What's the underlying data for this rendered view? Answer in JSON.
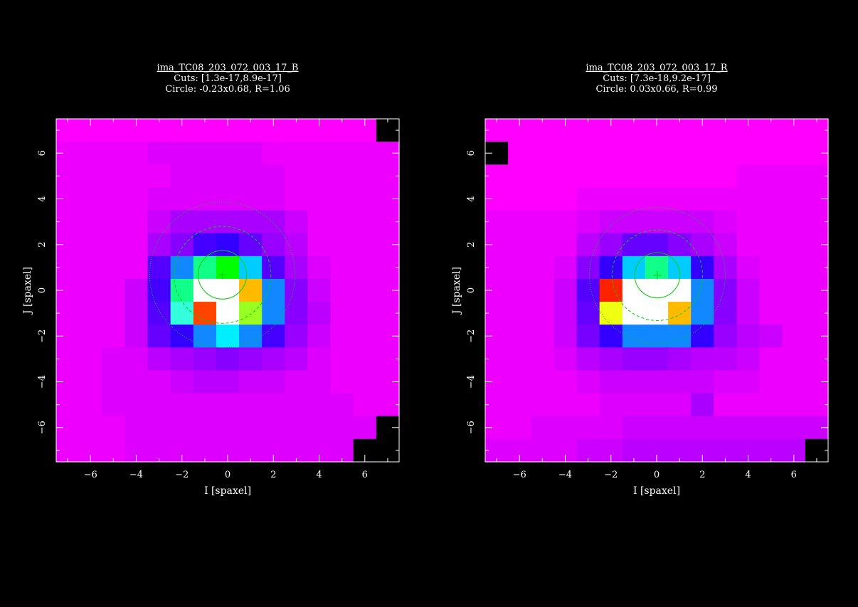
{
  "chart_data": [
    {
      "type": "heatmap",
      "title": "ima_TC08_203_072_003_17_B",
      "cuts": "Cuts: [1.3e-17,8.9e-17]",
      "circle_label": "Circle: -0.23x0.68, R=1.06",
      "xlabel": "I [spaxel]",
      "ylabel": "J [spaxel]",
      "xlim": [
        -7.5,
        7.5
      ],
      "ylim": [
        -7.5,
        7.5
      ],
      "xticks": [
        "-6",
        "-4",
        "-2",
        "0",
        "2",
        "4",
        "6"
      ],
      "yticks": [
        "-6",
        "-4",
        "-2",
        "0",
        "2",
        "4",
        "6"
      ],
      "circle": {
        "cx": -0.23,
        "cy": 0.68,
        "r": 1.06
      },
      "grid_rows_top_to_bottom": [
        [
          "#f0f",
          "#f0f",
          "#f0f",
          "#f0f",
          "#f0f",
          "#f0f",
          "#f0f",
          "#f0f",
          "#f0f",
          "#f0f",
          "#f0f",
          "#f0f",
          "#f0f",
          "#f0f",
          "#000"
        ],
        [
          "#e0f",
          "#e0f",
          "#e0f",
          "#e0f",
          "#d0f",
          "#d0f",
          "#d0f",
          "#d0f",
          "#d0f",
          "#e0f",
          "#e0f",
          "#e0f",
          "#e0f",
          "#e0f",
          "#e0f"
        ],
        [
          "#e0f",
          "#e0f",
          "#e0f",
          "#e0f",
          "#e0f",
          "#d0f",
          "#d0f",
          "#d0f",
          "#d0f",
          "#d0f",
          "#e0f",
          "#e0f",
          "#e0f",
          "#e0f",
          "#e0f"
        ],
        [
          "#e0f",
          "#e0f",
          "#e0f",
          "#e0f",
          "#d0f",
          "#d0f",
          "#d0f",
          "#d0f",
          "#d0f",
          "#d0f",
          "#e0f",
          "#e0f",
          "#e0f",
          "#e0f",
          "#e0f"
        ],
        [
          "#e0f",
          "#e0f",
          "#e0f",
          "#e0f",
          "#c0f",
          "#a0f",
          "#a0f",
          "#a0f",
          "#a0f",
          "#a0f",
          "#c0f",
          "#e0f",
          "#e0f",
          "#e0f",
          "#e0f"
        ],
        [
          "#e0f",
          "#e0f",
          "#e0f",
          "#e0f",
          "#a0f",
          "#80f",
          "#40f",
          "#30f",
          "#60f",
          "#90f",
          "#b0f",
          "#e0f",
          "#e0f",
          "#e0f",
          "#e0f"
        ],
        [
          "#e0f",
          "#e0f",
          "#e0f",
          "#e0f",
          "#50f",
          "#18f",
          "#1f8",
          "#0f0",
          "#0cf",
          "#50f",
          "#a0f",
          "#d0f",
          "#e0f",
          "#e0f",
          "#e0f"
        ],
        [
          "#e0f",
          "#e0f",
          "#e0f",
          "#c0f",
          "#40f",
          "#1f8",
          "#fff",
          "#fff",
          "#fb0",
          "#18f",
          "#80f",
          "#c0f",
          "#e0f",
          "#e0f",
          "#e0f"
        ],
        [
          "#e0f",
          "#e0f",
          "#e0f",
          "#c0f",
          "#50f",
          "#3fd",
          "#f40",
          "#fff",
          "#9f2",
          "#18f",
          "#80f",
          "#b0f",
          "#e0f",
          "#e0f",
          "#e0f"
        ],
        [
          "#e0f",
          "#e0f",
          "#e0f",
          "#c0f",
          "#60f",
          "#30f",
          "#18f",
          "#0ef",
          "#18f",
          "#40f",
          "#90f",
          "#c0f",
          "#e0f",
          "#e0f",
          "#e0f"
        ],
        [
          "#e0f",
          "#e0f",
          "#d0f",
          "#d0f",
          "#b0f",
          "#a0f",
          "#90f",
          "#80f",
          "#90f",
          "#a0f",
          "#b0f",
          "#d0f",
          "#e0f",
          "#e0f",
          "#e0f"
        ],
        [
          "#e0f",
          "#e0f",
          "#d0f",
          "#d0f",
          "#d0f",
          "#c0f",
          "#b0f",
          "#b0f",
          "#c0f",
          "#c0f",
          "#d0f",
          "#d0f",
          "#e0f",
          "#e0f",
          "#e0f"
        ],
        [
          "#e0f",
          "#e0f",
          "#d0f",
          "#d0f",
          "#d0f",
          "#d0f",
          "#d0f",
          "#d0f",
          "#d0f",
          "#d0f",
          "#d0f",
          "#d0f",
          "#d0f",
          "#e0f",
          "#e0f"
        ],
        [
          "#e0f",
          "#e0f",
          "#e0f",
          "#d0f",
          "#d0f",
          "#d0f",
          "#d0f",
          "#d0f",
          "#d0f",
          "#d0f",
          "#d0f",
          "#d0f",
          "#d0f",
          "#d0f",
          "#c0f"
        ],
        [
          "#e0f",
          "#e0f",
          "#e0f",
          "#d0f",
          "#d0f",
          "#d0f",
          "#d0f",
          "#d0f",
          "#d0f",
          "#d0f",
          "#d0f",
          "#d0f",
          "#d0f",
          "#d0f",
          "#000"
        ]
      ],
      "extra_black_cells": [
        [
          13,
          14
        ],
        [
          14,
          13
        ],
        [
          14,
          14
        ]
      ]
    },
    {
      "type": "heatmap",
      "title": "ima_TC08_203_072_003_17_R",
      "cuts": "Cuts: [7.3e-18,9.2e-17]",
      "circle_label": "Circle: 0.03x0.66, R=0.99",
      "xlabel": "I [spaxel]",
      "ylabel": "J [spaxel]",
      "xlim": [
        -7.5,
        7.5
      ],
      "ylim": [
        -7.5,
        7.5
      ],
      "xticks": [
        "-6",
        "-4",
        "-2",
        "0",
        "2",
        "4",
        "6"
      ],
      "yticks": [
        "-6",
        "-4",
        "-2",
        "0",
        "2",
        "4",
        "6"
      ],
      "circle": {
        "cx": 0.03,
        "cy": 0.66,
        "r": 0.99
      },
      "grid_rows_top_to_bottom": [
        [
          "#f0f",
          "#f0f",
          "#f0f",
          "#f0f",
          "#f0f",
          "#f0f",
          "#f0f",
          "#f0f",
          "#f0f",
          "#f0f",
          "#f0f",
          "#f0f",
          "#f0f",
          "#f0f",
          "#f0f"
        ],
        [
          "#000",
          "#f0f",
          "#f0f",
          "#f0f",
          "#f0f",
          "#f0f",
          "#f0f",
          "#f0f",
          "#f0f",
          "#f0f",
          "#f0f",
          "#f0f",
          "#f0f",
          "#f0f",
          "#f0f"
        ],
        [
          "#f0f",
          "#f0f",
          "#f0f",
          "#f0f",
          "#f0f",
          "#f0f",
          "#f0f",
          "#f0f",
          "#f0f",
          "#f0f",
          "#f0f",
          "#e0f",
          "#e0f",
          "#e0f",
          "#e0f"
        ],
        [
          "#f0f",
          "#f0f",
          "#f0f",
          "#f0f",
          "#e0f",
          "#e0f",
          "#e0f",
          "#e0f",
          "#e0f",
          "#e0f",
          "#e0f",
          "#e0f",
          "#e0f",
          "#e0f",
          "#e0f"
        ],
        [
          "#e0f",
          "#e0f",
          "#e0f",
          "#e0f",
          "#d0f",
          "#c0f",
          "#c0f",
          "#c0f",
          "#c0f",
          "#c0f",
          "#d0f",
          "#e0f",
          "#e0f",
          "#e0f",
          "#e0f"
        ],
        [
          "#e0f",
          "#e0f",
          "#e0f",
          "#e0f",
          "#b0f",
          "#90f",
          "#60f",
          "#60f",
          "#80f",
          "#a0f",
          "#c0f",
          "#e0f",
          "#e0f",
          "#e0f",
          "#e0f"
        ],
        [
          "#e0f",
          "#e0f",
          "#e0f",
          "#d0f",
          "#80f",
          "#30f",
          "#0cf",
          "#1f8",
          "#0cf",
          "#30f",
          "#a0f",
          "#d0f",
          "#e0f",
          "#e0f",
          "#e0f"
        ],
        [
          "#e0f",
          "#e0f",
          "#e0f",
          "#c0f",
          "#50f",
          "#f20",
          "#fff",
          "#fff",
          "#fff",
          "#18f",
          "#80f",
          "#c0f",
          "#e0f",
          "#e0f",
          "#e0f"
        ],
        [
          "#e0f",
          "#e0f",
          "#e0f",
          "#c0f",
          "#60f",
          "#ef1",
          "#fff",
          "#fff",
          "#fb0",
          "#18f",
          "#80f",
          "#c0f",
          "#e0f",
          "#e0f",
          "#e0f"
        ],
        [
          "#e0f",
          "#e0f",
          "#e0f",
          "#c0f",
          "#70f",
          "#30f",
          "#18f",
          "#18f",
          "#18f",
          "#30f",
          "#90f",
          "#b0f",
          "#c0f",
          "#e0f",
          "#e0f"
        ],
        [
          "#e0f",
          "#e0f",
          "#e0f",
          "#d0f",
          "#b0f",
          "#a0f",
          "#90f",
          "#90f",
          "#a0f",
          "#b0f",
          "#b0f",
          "#c0f",
          "#e0f",
          "#e0f",
          "#e0f"
        ],
        [
          "#e0f",
          "#e0f",
          "#e0f",
          "#e0f",
          "#d0f",
          "#c0f",
          "#c0f",
          "#c0f",
          "#c0f",
          "#c0f",
          "#d0f",
          "#d0f",
          "#e0f",
          "#e0f",
          "#e0f"
        ],
        [
          "#e0f",
          "#e0f",
          "#e0f",
          "#e0f",
          "#e0f",
          "#d0f",
          "#d0f",
          "#d0f",
          "#d0f",
          "#a0f",
          "#e0f",
          "#e0f",
          "#e0f",
          "#e0f",
          "#e0f"
        ],
        [
          "#e0f",
          "#e0f",
          "#d0f",
          "#d0f",
          "#d0f",
          "#d0f",
          "#c0f",
          "#c0f",
          "#c0f",
          "#c0f",
          "#c0f",
          "#c0f",
          "#c0f",
          "#c0f",
          "#c0f"
        ],
        [
          "#d0f",
          "#d0f",
          "#d0f",
          "#d0f",
          "#c0f",
          "#c0f",
          "#b0f",
          "#b0f",
          "#b0f",
          "#b0f",
          "#b0f",
          "#b0f",
          "#b0f",
          "#b0f",
          "#000"
        ]
      ],
      "extra_black_cells": []
    }
  ]
}
